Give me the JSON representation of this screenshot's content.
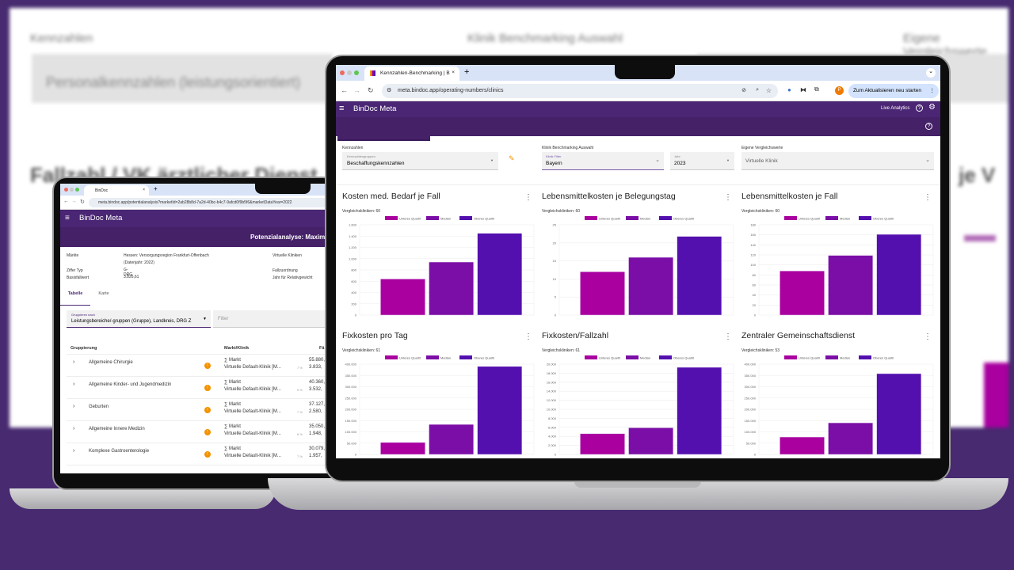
{
  "background": {
    "labels": [
      "Kennzahlen",
      "Klinik Benchmarking Auswahl",
      "Eigene Vergleichswerte"
    ],
    "field_value": "Personalkennzahlen (leistungsorientiert)",
    "heading": "Fallzahl / VK ärztlicher Dienst",
    "heading_right": "je V"
  },
  "small": {
    "tab_title": "BinDoc",
    "url": "meta.bindoc.app/potentialanalysis?marketId=2ab28b8d-7a2d-40bc-b4c7-9afcd0f9b5f6&marketDataYear=2022",
    "app_title": "BinDoc Meta",
    "page_title": "Potenzialanalyse: Maximalv",
    "info": [
      {
        "label": "Märkte",
        "value": "Hessen: Versorgungsregion Frankfurt-Offenbach",
        "value2": "(Datenjahr: 2022)"
      },
      {
        "label": "Ziffer Typ",
        "value": "G-DRG"
      },
      {
        "label": "Basisfallwert",
        "value": "3.826,61"
      }
    ],
    "info_right": [
      "Virtuelle Kliniken",
      "Fallzuordnung",
      "Jahr für Relativgewicht"
    ],
    "tabs": [
      "Tabelle",
      "Karte"
    ],
    "group_label": "Gruppieren nach",
    "group_value": "Leistungsbereiche/-gruppen (Gruppe), Landkreis, DRG Z",
    "filter_placeholder": "Filter",
    "columns": [
      "Gruppierung",
      "Markt/Klinik",
      "Fä"
    ],
    "rows": [
      {
        "name": "Allgemeine Chirurgie",
        "m1": "∑ Markt",
        "m2": "Virtuelle Default-Klinik [M...",
        "v1": "55.880,",
        "pct": "7 %",
        "v2": "3.833,"
      },
      {
        "name": "Allgemeine Kinder- und Jugendmedizin",
        "m1": "∑ Markt",
        "m2": "Virtuelle Default-Klinik [M...",
        "v1": "40.360,",
        "pct": "9 %",
        "v2": "3.532,"
      },
      {
        "name": "Geburten",
        "m1": "∑ Markt",
        "m2": "Virtuelle Default-Klinik [M...",
        "v1": "37.127,",
        "pct": "7 %",
        "v2": "2.580,"
      },
      {
        "name": "Allgemeine Innere Medizin",
        "m1": "∑ Markt",
        "m2": "Virtuelle Default-Klinik [M...",
        "v1": "35.050,",
        "pct": "6 %",
        "v2": "1.948,"
      },
      {
        "name": "Komplexe Gastroenterologie",
        "m1": "∑ Markt",
        "m2": "Virtuelle Default-Klinik [M...",
        "v1": "30.079,",
        "pct": "7 %",
        "v2": "1.957,"
      }
    ]
  },
  "big": {
    "tab_title": "Kennzahlen-Benchmarking | B",
    "url": "meta.bindoc.app/operating-numbers/clinics",
    "profile_initial": "P",
    "update_button": "Zum Aktualisieren neu starten",
    "app_title": "BinDoc Meta",
    "live_analytics": "Live Analytics",
    "filters": {
      "kennzahlen_label": "Kennzahlen",
      "gruppen_label": "Kennzahlengruppen",
      "gruppen_value": "Beschaffungskennzahlen",
      "benchmark_label": "Klinik Benchmarking Auswahl",
      "klinik_filter_label": "Klinik Filter",
      "klinik_filter_value": "Bayern",
      "jahr_label": "Jahr",
      "jahr_value": "2023",
      "eigene_label": "Eigene Vergleichswerte",
      "eigene_value": "Virtuelle Klinik"
    }
  },
  "colors": {
    "accent": "#4a2674",
    "unteres": "#a9009f",
    "median": "#7b0ea6",
    "oberes": "#5310ae",
    "background": "#472a70",
    "warning": "#f39200"
  },
  "chart_data": [
    {
      "type": "bar",
      "title": "Kosten med. Bedarf je Fall",
      "subtitle": "Vergleichskliniken: 60",
      "categories": [
        "Unteres Quartil",
        "Median",
        "Oberes Quartil"
      ],
      "values": [
        640,
        940,
        1450
      ],
      "ylim": [
        0,
        1600
      ],
      "ystep": 200,
      "legend": "top",
      "grid": true
    },
    {
      "type": "bar",
      "title": "Lebensmittelkosten je Belegungstag",
      "subtitle": "Vergleichskliniken: 60",
      "categories": [
        "Unteres Quartil",
        "Median",
        "Oberes Quartil"
      ],
      "values": [
        12,
        16,
        21.8
      ],
      "ylim": [
        0,
        25
      ],
      "ystep": 5,
      "legend": "top",
      "grid": true
    },
    {
      "type": "bar",
      "title": "Lebensmittelkosten je Fall",
      "subtitle": "Vergleichskliniken: 60",
      "categories": [
        "Unteres Quartil",
        "Median",
        "Oberes Quartil"
      ],
      "values": [
        88,
        119,
        161
      ],
      "ylim": [
        0,
        180
      ],
      "ystep": 20,
      "legend": "top",
      "grid": true
    },
    {
      "type": "bar",
      "title": "Fixkosten pro Tag",
      "subtitle": "Vergleichskliniken: 61",
      "categories": [
        "Unteres Quartil",
        "Median",
        "Oberes Quartil"
      ],
      "values": [
        53000,
        133000,
        390000
      ],
      "ylim": [
        0,
        400000
      ],
      "ystep": 50000,
      "legend": "top",
      "grid": true
    },
    {
      "type": "bar",
      "title": "Fixkosten/Fallzahl",
      "subtitle": "Vergleichskliniken: 61",
      "categories": [
        "Unteres Quartil",
        "Median",
        "Oberes Quartil"
      ],
      "values": [
        4600,
        5900,
        19300
      ],
      "ylim": [
        0,
        20000
      ],
      "ystep": 2000,
      "legend": "top",
      "grid": true
    },
    {
      "type": "bar",
      "title": "Zentraler Gemeinschaftsdienst",
      "subtitle": "Vergleichskliniken: 53",
      "categories": [
        "Unteres Quartil",
        "Median",
        "Oberes Quartil"
      ],
      "values": [
        77000,
        140000,
        358000
      ],
      "ylim": [
        0,
        400000
      ],
      "ystep": 50000,
      "legend": "top",
      "grid": true
    }
  ]
}
